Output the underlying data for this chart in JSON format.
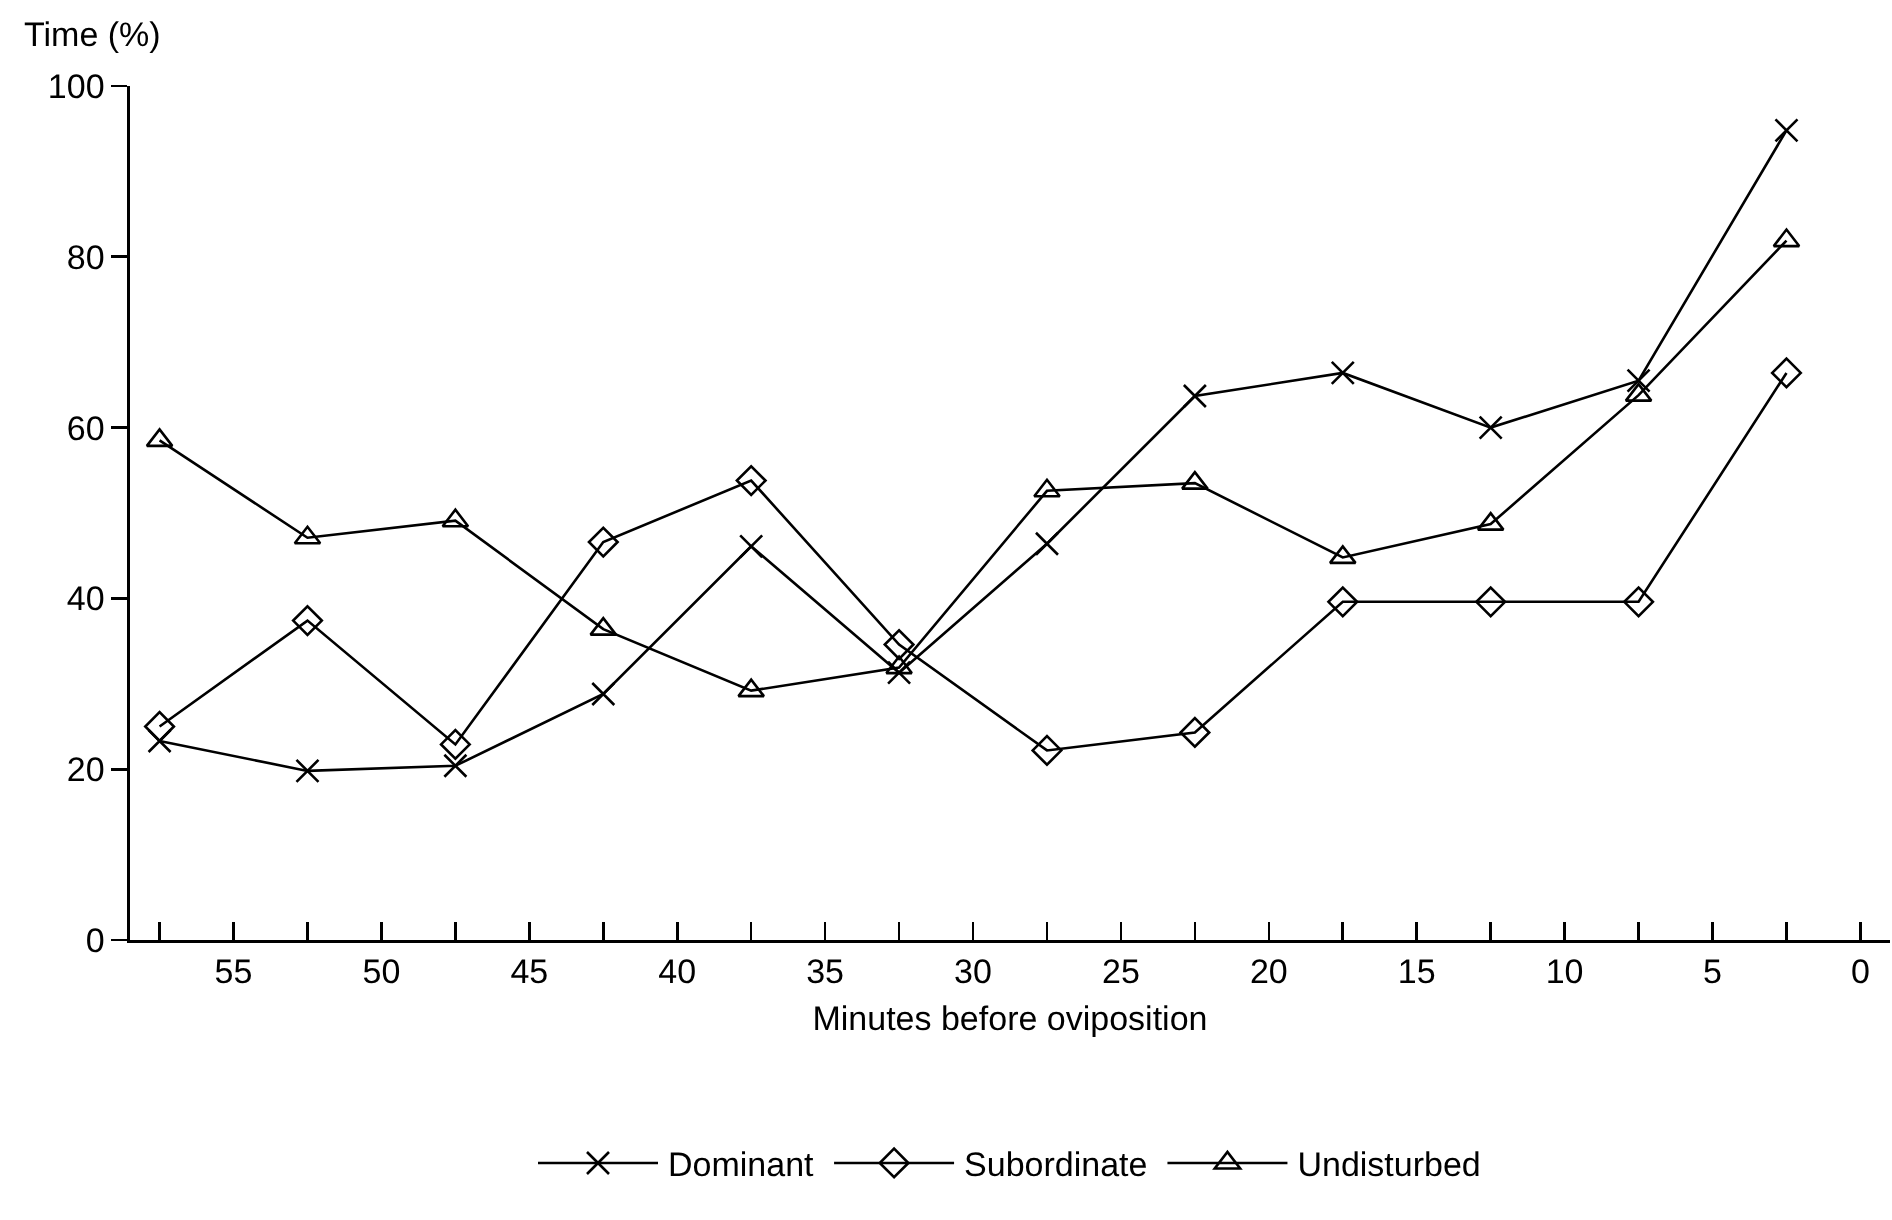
{
  "chart_data": {
    "type": "line",
    "xlabel": "Minutes before oviposition",
    "ylabel": "Time (%)",
    "x": [
      57.5,
      52.5,
      47.5,
      42.5,
      37.5,
      32.5,
      27.5,
      22.5,
      17.5,
      12.5,
      7.5,
      2.5
    ],
    "xlim": [
      58.5,
      -1
    ],
    "xticks": [
      {
        "value": 57.5,
        "label": null
      },
      55,
      {
        "value": 52.5,
        "label": null
      },
      50,
      {
        "value": 47.5,
        "label": null
      },
      45,
      {
        "value": 42.5,
        "label": null
      },
      40,
      {
        "value": 37.5,
        "label": null
      },
      35,
      {
        "value": 32.5,
        "label": null
      },
      30,
      {
        "value": 27.5,
        "label": null
      },
      25,
      {
        "value": 22.5,
        "label": null
      },
      20,
      {
        "value": 17.5,
        "label": null
      },
      15,
      {
        "value": 12.5,
        "label": null
      },
      10,
      {
        "value": 7.5,
        "label": null
      },
      5,
      {
        "value": 2.5,
        "label": null
      },
      0
    ],
    "ylim": [
      0,
      100
    ],
    "yticks": [
      0,
      20,
      40,
      60,
      80,
      100
    ],
    "grid": false,
    "legend": "bottom",
    "line_style": "solid",
    "series": [
      {
        "name": "Dominant",
        "color": "#000000",
        "marker": "cross",
        "values": [
          23.3,
          19.8,
          20.4,
          28.8,
          46.1,
          31.3,
          46.4,
          63.7,
          66.4,
          60.0,
          65.5,
          94.8
        ]
      },
      {
        "name": "Subordinate",
        "color": "#000000",
        "marker": "diamond",
        "values": [
          25.0,
          37.4,
          22.9,
          46.6,
          53.8,
          34.6,
          22.2,
          24.3,
          39.6,
          39.6,
          39.6,
          66.4
        ]
      },
      {
        "name": "Undisturbed",
        "color": "#000000",
        "marker": "triangle",
        "values": [
          58.5,
          47.1,
          49.1,
          36.4,
          29.2,
          31.9,
          52.6,
          53.5,
          44.8,
          48.7,
          63.8,
          81.9
        ]
      }
    ]
  }
}
